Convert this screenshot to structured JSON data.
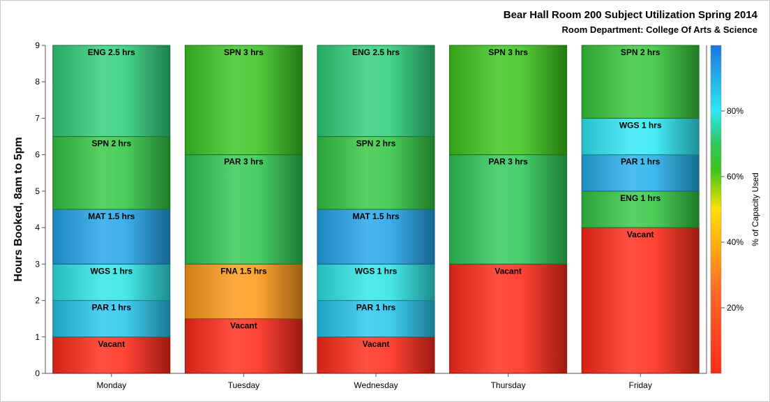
{
  "chart_data": {
    "type": "bar",
    "stacked": true,
    "title": "Bear Hall Room 200 Subject Utilization Spring 2014",
    "subtitle": "Room Department:  College Of Arts & Science",
    "xlabel": "",
    "ylabel": "Hours Booked, 8am to 5pm",
    "ylim": [
      0,
      9
    ],
    "yticks": [
      "0",
      "1",
      "2",
      "3",
      "4",
      "5",
      "6",
      "7",
      "8",
      "9"
    ],
    "grid": false,
    "categories": [
      "Monday",
      "Tuesday",
      "Wednesday",
      "Thursday",
      "Friday"
    ],
    "stacks": [
      {
        "day": "Monday",
        "segments": [
          {
            "label": "Vacant",
            "hours": 1,
            "capacity_pct": 0
          },
          {
            "label": "PAR 1 hrs",
            "hours": 1,
            "capacity_pct": 86
          },
          {
            "label": "WGS 1 hrs",
            "hours": 1,
            "capacity_pct": 79
          },
          {
            "label": "MAT 1.5 hrs",
            "hours": 1.5,
            "capacity_pct": 92
          },
          {
            "label": "SPN 2 hrs",
            "hours": 2,
            "capacity_pct": 67
          },
          {
            "label": "ENG 2.5 hrs",
            "hours": 2.5,
            "capacity_pct": 72
          }
        ]
      },
      {
        "day": "Tuesday",
        "segments": [
          {
            "label": "Vacant",
            "hours": 1.5,
            "capacity_pct": 0
          },
          {
            "label": "FNA 1.5 hrs",
            "hours": 1.5,
            "capacity_pct": 35
          },
          {
            "label": "PAR 3 hrs",
            "hours": 3,
            "capacity_pct": 69
          },
          {
            "label": "SPN 3 hrs",
            "hours": 3,
            "capacity_pct": 63
          }
        ]
      },
      {
        "day": "Wednesday",
        "segments": [
          {
            "label": "Vacant",
            "hours": 1,
            "capacity_pct": 0
          },
          {
            "label": "PAR 1 hrs",
            "hours": 1,
            "capacity_pct": 86
          },
          {
            "label": "WGS 1 hrs",
            "hours": 1,
            "capacity_pct": 79
          },
          {
            "label": "MAT 1.5 hrs",
            "hours": 1.5,
            "capacity_pct": 92
          },
          {
            "label": "SPN 2 hrs",
            "hours": 2,
            "capacity_pct": 67
          },
          {
            "label": "ENG 2.5 hrs",
            "hours": 2.5,
            "capacity_pct": 72
          }
        ]
      },
      {
        "day": "Thursday",
        "segments": [
          {
            "label": "Vacant",
            "hours": 3,
            "capacity_pct": 0
          },
          {
            "label": "PAR 3 hrs",
            "hours": 3,
            "capacity_pct": 70
          },
          {
            "label": "SPN 3 hrs",
            "hours": 3,
            "capacity_pct": 62
          }
        ]
      },
      {
        "day": "Friday",
        "segments": [
          {
            "label": "Vacant",
            "hours": 4,
            "capacity_pct": 0
          },
          {
            "label": "ENG 1 hrs",
            "hours": 1,
            "capacity_pct": 67
          },
          {
            "label": "PAR 1 hrs",
            "hours": 1,
            "capacity_pct": 90
          },
          {
            "label": "WGS 1 hrs",
            "hours": 1,
            "capacity_pct": 80
          },
          {
            "label": "SPN 2 hrs",
            "hours": 2,
            "capacity_pct": 66
          }
        ]
      }
    ],
    "colorbar": {
      "label": "% of Capacity Used",
      "ticks": [
        "20%",
        "40%",
        "60%",
        "80%"
      ],
      "tick_values": [
        20,
        40,
        60,
        80
      ],
      "range": [
        0,
        100
      ],
      "stops": [
        {
          "pct": 0,
          "color": "#ff2a1a"
        },
        {
          "pct": 25,
          "color": "#ff6a2a"
        },
        {
          "pct": 50,
          "color": "#ffe000"
        },
        {
          "pct": 62,
          "color": "#3cc41c"
        },
        {
          "pct": 70,
          "color": "#2ec85a"
        },
        {
          "pct": 80,
          "color": "#2ee8f4"
        },
        {
          "pct": 100,
          "color": "#1a76e0"
        }
      ],
      "placement": "right"
    }
  }
}
